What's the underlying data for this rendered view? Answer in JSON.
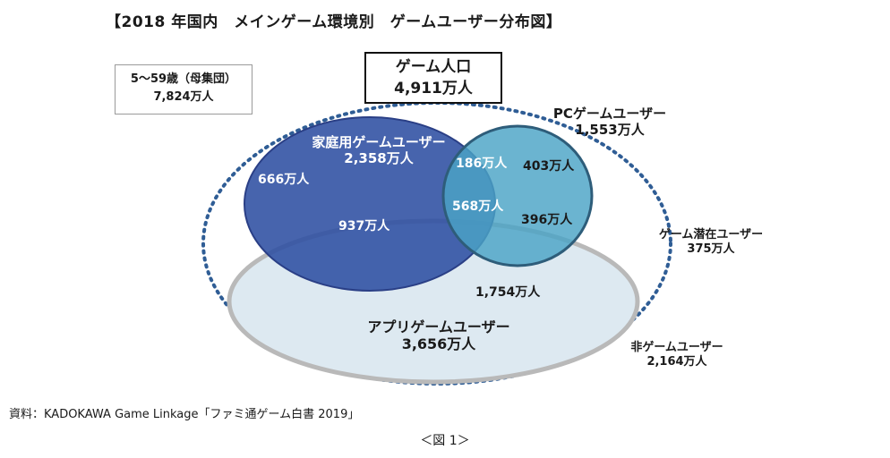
{
  "title": "【2018 年国内　メインゲーム環境別　ゲームユーザー分布図】",
  "population": {
    "label": "5〜59歳（母集団）",
    "value": "7,824万人"
  },
  "game_population": {
    "label": "ゲーム人口",
    "value": "4,911万人"
  },
  "home_users": {
    "label": "家庭用ゲームユーザー",
    "value": "2,358万人"
  },
  "pc_users": {
    "label": "PCゲームユーザー",
    "value": "1,553万人"
  },
  "app_users": {
    "label": "アプリゲームユーザー",
    "value": "3,656万人"
  },
  "potential_users": {
    "label": "ゲーム潜在ユーザー",
    "value": "375万人"
  },
  "non_users": {
    "label": "非ゲームユーザー",
    "value": "2,164万人"
  },
  "regions": {
    "home_only": "666万人",
    "home_pc": "186万人",
    "pc_only": "403万人",
    "all_three": "568万人",
    "pc_app": "396万人",
    "home_app": "937万人",
    "app_only": "1,754万人"
  },
  "source": "資料：KADOKAWA Game Linkage「ファミ通ゲーム白書 2019」",
  "figure_caption": "＜図 1＞",
  "colors": {
    "home": "#2d4ea2",
    "pc": "#4aa3c6",
    "app": "#dde9f1",
    "app_border": "#b9b9b9",
    "dotted": "#2f5d95"
  }
}
